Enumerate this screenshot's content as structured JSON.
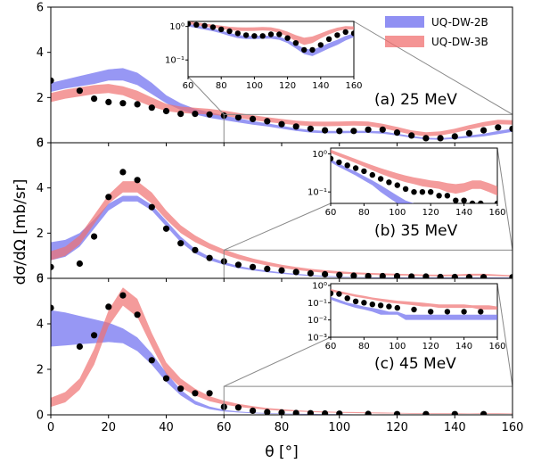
{
  "chart_data": {
    "type": "area",
    "xlabel": "θ [°]",
    "ylabel": "dσ/dΩ  [mb/sr]",
    "xlim": [
      0,
      160
    ],
    "x_ticks": [
      "0",
      "20",
      "40",
      "60",
      "80",
      "100",
      "120",
      "140",
      "160"
    ],
    "y_ticks": [
      "0",
      "2",
      "4",
      "6"
    ],
    "legend": {
      "placement": "top-right",
      "entries": [
        {
          "name": "UQ-DW-2B",
          "color": "#6b6bef"
        },
        {
          "name": "UQ-DW-3B",
          "color": "#f07070"
        }
      ]
    },
    "panels": [
      {
        "label": "(a) 25 MeV",
        "ylim": [
          0,
          6
        ],
        "band_2B": {
          "x": [
            0,
            5,
            10,
            15,
            20,
            25,
            30,
            35,
            40,
            45,
            50,
            55,
            60,
            65,
            70,
            75,
            80,
            85,
            90,
            95,
            100,
            105,
            110,
            115,
            120,
            125,
            130,
            135,
            140,
            145,
            150,
            155,
            160
          ],
          "lo": [
            2.25,
            2.4,
            2.5,
            2.6,
            2.75,
            2.75,
            2.55,
            2.15,
            1.75,
            1.45,
            1.25,
            1.1,
            1.0,
            0.9,
            0.8,
            0.72,
            0.62,
            0.52,
            0.45,
            0.42,
            0.42,
            0.43,
            0.43,
            0.4,
            0.32,
            0.22,
            0.15,
            0.13,
            0.17,
            0.22,
            0.28,
            0.38,
            0.48
          ],
          "hi": [
            2.65,
            2.8,
            2.95,
            3.1,
            3.25,
            3.3,
            3.1,
            2.65,
            2.1,
            1.75,
            1.5,
            1.35,
            1.2,
            1.08,
            0.96,
            0.86,
            0.75,
            0.64,
            0.56,
            0.52,
            0.52,
            0.53,
            0.53,
            0.5,
            0.4,
            0.3,
            0.22,
            0.2,
            0.25,
            0.32,
            0.4,
            0.52,
            0.62
          ]
        },
        "band_3B": {
          "x": [
            0,
            5,
            10,
            15,
            20,
            25,
            30,
            35,
            40,
            45,
            50,
            55,
            60,
            65,
            70,
            75,
            80,
            85,
            90,
            95,
            100,
            105,
            110,
            115,
            120,
            125,
            130,
            135,
            140,
            145,
            150,
            155,
            160
          ],
          "lo": [
            1.8,
            1.95,
            2.05,
            2.15,
            2.2,
            2.1,
            1.85,
            1.6,
            1.4,
            1.32,
            1.28,
            1.25,
            1.18,
            1.1,
            1.0,
            0.92,
            0.85,
            0.78,
            0.74,
            0.73,
            0.74,
            0.76,
            0.74,
            0.64,
            0.5,
            0.36,
            0.28,
            0.32,
            0.44,
            0.58,
            0.72,
            0.82,
            0.8
          ],
          "hi": [
            2.2,
            2.35,
            2.45,
            2.55,
            2.6,
            2.5,
            2.3,
            2.0,
            1.72,
            1.6,
            1.55,
            1.5,
            1.42,
            1.32,
            1.22,
            1.13,
            1.05,
            0.98,
            0.94,
            0.93,
            0.94,
            0.96,
            0.94,
            0.84,
            0.7,
            0.55,
            0.46,
            0.5,
            0.62,
            0.78,
            0.92,
            1.02,
            1.0
          ]
        },
        "data_points": [
          {
            "x": 0,
            "y": 2.75
          },
          {
            "x": 10,
            "y": 2.3
          },
          {
            "x": 15,
            "y": 1.95
          },
          {
            "x": 20,
            "y": 1.8
          },
          {
            "x": 25,
            "y": 1.75
          },
          {
            "x": 30,
            "y": 1.7
          },
          {
            "x": 35,
            "y": 1.55
          },
          {
            "x": 40,
            "y": 1.4
          },
          {
            "x": 45,
            "y": 1.28
          },
          {
            "x": 50,
            "y": 1.28
          },
          {
            "x": 55,
            "y": 1.25
          },
          {
            "x": 60,
            "y": 1.2
          },
          {
            "x": 65,
            "y": 1.12
          },
          {
            "x": 70,
            "y": 1.05
          },
          {
            "x": 75,
            "y": 0.95
          },
          {
            "x": 80,
            "y": 0.82
          },
          {
            "x": 85,
            "y": 0.72
          },
          {
            "x": 90,
            "y": 0.62
          },
          {
            "x": 95,
            "y": 0.55
          },
          {
            "x": 100,
            "y": 0.52
          },
          {
            "x": 105,
            "y": 0.52
          },
          {
            "x": 110,
            "y": 0.58
          },
          {
            "x": 115,
            "y": 0.58
          },
          {
            "x": 120,
            "y": 0.45
          },
          {
            "x": 125,
            "y": 0.32
          },
          {
            "x": 130,
            "y": 0.2
          },
          {
            "x": 135,
            "y": 0.2
          },
          {
            "x": 140,
            "y": 0.28
          },
          {
            "x": 145,
            "y": 0.42
          },
          {
            "x": 150,
            "y": 0.55
          },
          {
            "x": 155,
            "y": 0.68
          },
          {
            "x": 160,
            "y": 0.62
          }
        ],
        "inset": {
          "xlim": [
            60,
            160
          ],
          "x_ticks": [
            "60",
            "80",
            "100",
            "120",
            "140",
            "160"
          ],
          "y_ticks": [
            "10⁰",
            "10⁻¹"
          ],
          "zoom_range_x": [
            60,
            160
          ]
        }
      },
      {
        "label": "(b) 35 MeV",
        "ylim": [
          0,
          6
        ],
        "band_2B": {
          "x": [
            0,
            5,
            10,
            15,
            20,
            25,
            30,
            35,
            40,
            45,
            50,
            55,
            60,
            65,
            70,
            75,
            80,
            85,
            90,
            95,
            100,
            105,
            110,
            115,
            120,
            125,
            130,
            135,
            140,
            145,
            150,
            155,
            160
          ],
          "lo": [
            0.8,
            0.95,
            1.4,
            2.2,
            3.0,
            3.4,
            3.4,
            3.0,
            2.3,
            1.6,
            1.1,
            0.8,
            0.6,
            0.45,
            0.35,
            0.27,
            0.2,
            0.15,
            0.1,
            0.07,
            0.05,
            0.04,
            0.03,
            0.02,
            0.02,
            0.02,
            0.02,
            0.02,
            0.02,
            0.02,
            0.02,
            0.02,
            0.02
          ],
          "hi": [
            1.6,
            1.7,
            2.0,
            2.6,
            3.3,
            3.65,
            3.65,
            3.25,
            2.55,
            1.85,
            1.3,
            0.95,
            0.72,
            0.55,
            0.43,
            0.34,
            0.26,
            0.2,
            0.15,
            0.11,
            0.08,
            0.06,
            0.05,
            0.04,
            0.04,
            0.04,
            0.04,
            0.04,
            0.04,
            0.04,
            0.04,
            0.04,
            0.04
          ]
        },
        "band_3B": {
          "x": [
            0,
            5,
            10,
            15,
            20,
            25,
            30,
            35,
            40,
            45,
            50,
            55,
            60,
            65,
            70,
            75,
            80,
            85,
            90,
            95,
            100,
            105,
            110,
            115,
            120,
            125,
            130,
            135,
            140,
            145,
            150,
            155,
            160
          ],
          "lo": [
            0.8,
            1.0,
            1.5,
            2.4,
            3.3,
            3.8,
            3.8,
            3.3,
            2.6,
            2.0,
            1.6,
            1.3,
            1.05,
            0.85,
            0.7,
            0.57,
            0.46,
            0.37,
            0.3,
            0.25,
            0.21,
            0.18,
            0.16,
            0.14,
            0.13,
            0.12,
            0.1,
            0.09,
            0.1,
            0.12,
            0.12,
            0.1,
            0.08
          ],
          "hi": [
            1.2,
            1.4,
            1.9,
            2.8,
            3.7,
            4.3,
            4.3,
            3.8,
            3.0,
            2.35,
            1.9,
            1.55,
            1.28,
            1.06,
            0.88,
            0.73,
            0.6,
            0.5,
            0.42,
            0.36,
            0.31,
            0.27,
            0.24,
            0.22,
            0.2,
            0.19,
            0.17,
            0.16,
            0.17,
            0.2,
            0.2,
            0.17,
            0.14
          ]
        },
        "data_points": [
          {
            "x": 0,
            "y": 0.5
          },
          {
            "x": 10,
            "y": 0.65
          },
          {
            "x": 15,
            "y": 1.85
          },
          {
            "x": 20,
            "y": 3.6
          },
          {
            "x": 25,
            "y": 4.7
          },
          {
            "x": 30,
            "y": 4.35
          },
          {
            "x": 35,
            "y": 3.15
          },
          {
            "x": 40,
            "y": 2.2
          },
          {
            "x": 45,
            "y": 1.55
          },
          {
            "x": 50,
            "y": 1.25
          },
          {
            "x": 55,
            "y": 0.9
          },
          {
            "x": 60,
            "y": 0.75
          },
          {
            "x": 65,
            "y": 0.6
          },
          {
            "x": 70,
            "y": 0.5
          },
          {
            "x": 75,
            "y": 0.42
          },
          {
            "x": 80,
            "y": 0.35
          },
          {
            "x": 85,
            "y": 0.28
          },
          {
            "x": 90,
            "y": 0.22
          },
          {
            "x": 95,
            "y": 0.18
          },
          {
            "x": 100,
            "y": 0.15
          },
          {
            "x": 105,
            "y": 0.12
          },
          {
            "x": 110,
            "y": 0.1
          },
          {
            "x": 115,
            "y": 0.1
          },
          {
            "x": 120,
            "y": 0.1
          },
          {
            "x": 125,
            "y": 0.08
          },
          {
            "x": 130,
            "y": 0.08
          },
          {
            "x": 135,
            "y": 0.06
          },
          {
            "x": 140,
            "y": 0.06
          },
          {
            "x": 145,
            "y": 0.05
          },
          {
            "x": 150,
            "y": 0.05
          },
          {
            "x": 160,
            "y": 0.05
          }
        ],
        "inset": {
          "xlim": [
            60,
            160
          ],
          "x_ticks": [
            "60",
            "80",
            "100",
            "120",
            "140",
            "160"
          ],
          "y_ticks": [
            "10⁰",
            "10⁻¹"
          ],
          "zoom_range_x": [
            60,
            160
          ]
        }
      },
      {
        "label": "(c) 45 MeV",
        "ylim": [
          0,
          6
        ],
        "band_2B": {
          "x": [
            0,
            5,
            10,
            15,
            20,
            25,
            30,
            35,
            40,
            45,
            50,
            55,
            60,
            65,
            70,
            75,
            80,
            85,
            90,
            95,
            100,
            105,
            110,
            115,
            120,
            125,
            130,
            135,
            140,
            145,
            150,
            155,
            160
          ],
          "lo": [
            3.0,
            3.05,
            3.1,
            3.15,
            3.2,
            3.15,
            2.8,
            2.2,
            1.45,
            0.85,
            0.45,
            0.25,
            0.15,
            0.1,
            0.07,
            0.05,
            0.04,
            0.03,
            0.02,
            0.02,
            0.02,
            0.01,
            0.01,
            0.01,
            0.01,
            0.01,
            0.01,
            0.01,
            0.01,
            0.01,
            0.01,
            0.01,
            0.01
          ],
          "hi": [
            4.6,
            4.5,
            4.35,
            4.2,
            4.05,
            3.8,
            3.4,
            2.7,
            1.85,
            1.1,
            0.62,
            0.36,
            0.22,
            0.15,
            0.1,
            0.08,
            0.06,
            0.05,
            0.04,
            0.03,
            0.03,
            0.02,
            0.02,
            0.02,
            0.02,
            0.02,
            0.02,
            0.02,
            0.02,
            0.02,
            0.02,
            0.02,
            0.02
          ]
        },
        "band_3B": {
          "x": [
            0,
            5,
            10,
            15,
            20,
            25,
            30,
            35,
            40,
            45,
            50,
            55,
            60,
            65,
            70,
            75,
            80,
            85,
            90,
            95,
            100,
            105,
            110,
            115,
            120,
            125,
            130,
            135,
            140,
            145,
            150,
            155,
            160
          ],
          "lo": [
            0.35,
            0.55,
            1.1,
            2.2,
            3.9,
            4.8,
            4.3,
            3.0,
            1.8,
            1.2,
            0.85,
            0.6,
            0.45,
            0.35,
            0.28,
            0.22,
            0.18,
            0.15,
            0.12,
            0.1,
            0.09,
            0.08,
            0.07,
            0.06,
            0.06,
            0.05,
            0.05,
            0.05,
            0.05,
            0.05,
            0.04,
            0.04,
            0.04
          ],
          "hi": [
            0.75,
            1.0,
            1.6,
            2.9,
            4.6,
            5.6,
            5.1,
            3.6,
            2.3,
            1.6,
            1.15,
            0.82,
            0.62,
            0.48,
            0.38,
            0.3,
            0.25,
            0.2,
            0.17,
            0.15,
            0.13,
            0.12,
            0.11,
            0.1,
            0.09,
            0.08,
            0.08,
            0.08,
            0.08,
            0.07,
            0.07,
            0.07,
            0.06
          ]
        },
        "data_points": [
          {
            "x": 0,
            "y": 4.7
          },
          {
            "x": 10,
            "y": 3.0
          },
          {
            "x": 15,
            "y": 3.5
          },
          {
            "x": 20,
            "y": 4.75
          },
          {
            "x": 25,
            "y": 5.25
          },
          {
            "x": 30,
            "y": 4.4
          },
          {
            "x": 35,
            "y": 2.4
          },
          {
            "x": 40,
            "y": 1.6
          },
          {
            "x": 45,
            "y": 1.15
          },
          {
            "x": 50,
            "y": 0.95
          },
          {
            "x": 55,
            "y": 0.95
          },
          {
            "x": 60,
            "y": 0.35
          },
          {
            "x": 65,
            "y": 0.32
          },
          {
            "x": 70,
            "y": 0.18
          },
          {
            "x": 75,
            "y": 0.12
          },
          {
            "x": 80,
            "y": 0.1
          },
          {
            "x": 85,
            "y": 0.08
          },
          {
            "x": 90,
            "y": 0.07
          },
          {
            "x": 95,
            "y": 0.06
          },
          {
            "x": 100,
            "y": 0.05
          },
          {
            "x": 110,
            "y": 0.04
          },
          {
            "x": 120,
            "y": 0.03
          },
          {
            "x": 130,
            "y": 0.03
          },
          {
            "x": 140,
            "y": 0.03
          },
          {
            "x": 150,
            "y": 0.03
          }
        ],
        "inset": {
          "xlim": [
            60,
            160
          ],
          "x_ticks": [
            "60",
            "80",
            "100",
            "120",
            "140",
            "160"
          ],
          "y_ticks": [
            "10⁰",
            "10⁻¹",
            "10⁻²",
            "10⁻³"
          ],
          "zoom_range_x": [
            60,
            160
          ]
        }
      }
    ]
  }
}
